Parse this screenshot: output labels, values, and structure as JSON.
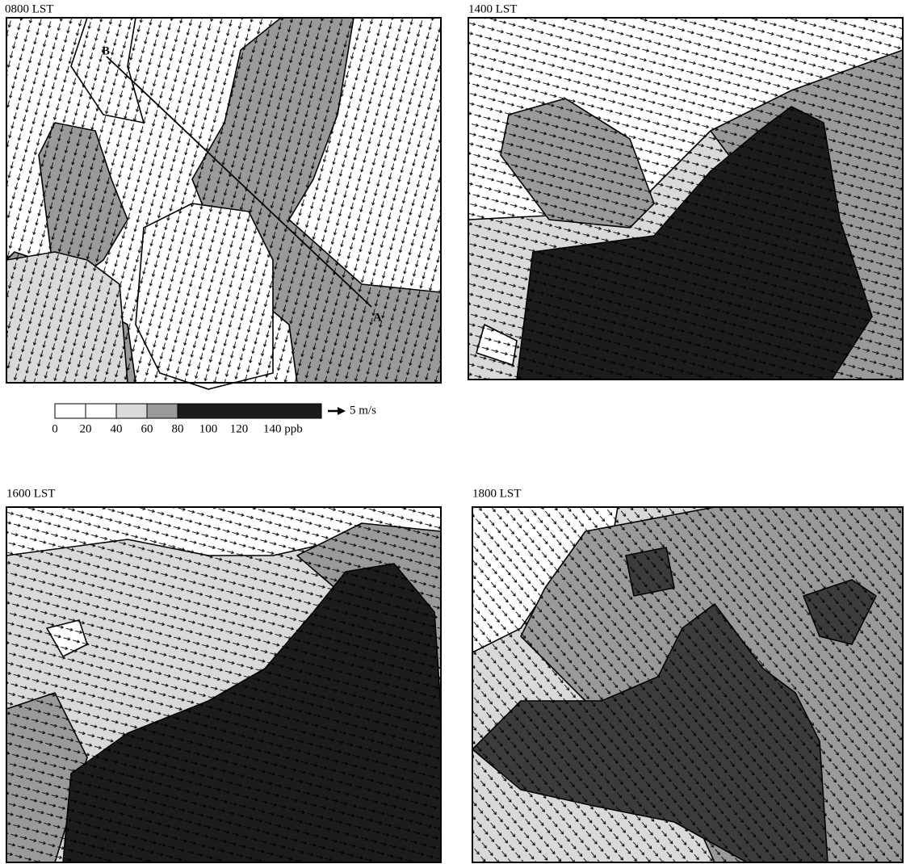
{
  "panels": [
    {
      "label": "0800 LST"
    },
    {
      "label": "1400 LST"
    },
    {
      "label": "1600 LST"
    },
    {
      "label": "1800 LST"
    }
  ],
  "section_line": {
    "start": "B",
    "end": "A"
  },
  "legend": {
    "colors": [
      "#ffffff",
      "#ffffff",
      "#d9d9d9",
      "#9a9a9a",
      "#1c1c1c"
    ],
    "labels": [
      "0",
      "20",
      "40",
      "60",
      "80",
      "100",
      "120",
      "140 ppb"
    ],
    "scale_label": "5 m/s"
  }
}
